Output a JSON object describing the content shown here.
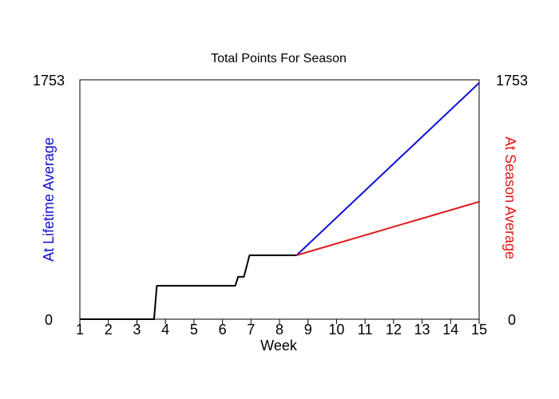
{
  "chart_data": {
    "type": "line",
    "title": "Total Points For Season",
    "xlabel": "Week",
    "ylabel_left": "At Lifetime Average",
    "ylabel_right": "At Season Average",
    "xlim": [
      1,
      15
    ],
    "ylim": [
      0,
      1753
    ],
    "x_ticks": [
      1,
      2,
      3,
      4,
      5,
      6,
      7,
      8,
      9,
      10,
      11,
      12,
      13,
      14,
      15
    ],
    "y_tick_labels": {
      "min": "0",
      "max": "1753"
    },
    "grid": false,
    "colors": {
      "actual": "#000000",
      "lifetime": "#1010d0",
      "season": "#e01818"
    },
    "series": [
      {
        "key": "actual",
        "x": [
          1,
          3.6,
          3.7,
          6.45,
          6.55,
          6.75,
          6.95,
          8.6
        ],
        "y": [
          0,
          0,
          245,
          245,
          310,
          310,
          468,
          468
        ]
      },
      {
        "key": "lifetime",
        "x": [
          8.6,
          15
        ],
        "y": [
          468,
          1730
        ]
      },
      {
        "key": "season",
        "x": [
          8.6,
          15
        ],
        "y": [
          468,
          860
        ]
      }
    ]
  }
}
